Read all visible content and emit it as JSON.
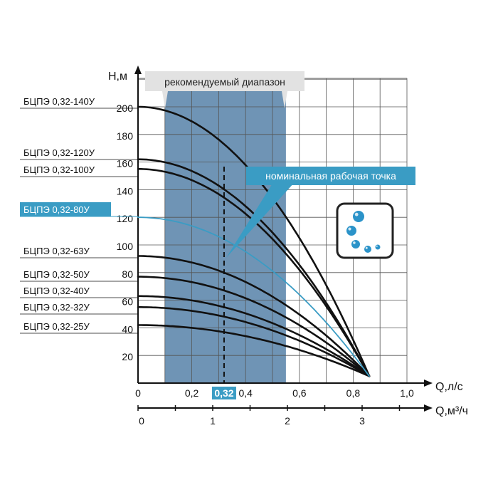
{
  "colors": {
    "grid": "#555555",
    "curve": "#111111",
    "highlight": "#3a9cc4",
    "range_fill": "#5f88ad",
    "callout_gray": "#e2e2e2",
    "water_drop": "#2b93c9"
  },
  "icon": "water-drops-icon",
  "chart_data": {
    "type": "line",
    "title": "",
    "ylabel": "Н,м",
    "xlabel": "Q,л/с",
    "xlabel2": "Q,м³/ч",
    "ylim": [
      0,
      210
    ],
    "xlim": [
      0,
      1.0
    ],
    "grid": true,
    "y_ticks": [
      "200",
      "180",
      "160",
      "140",
      "120",
      "100",
      "80",
      "60",
      "40",
      "20"
    ],
    "y_tick_values": [
      200,
      180,
      160,
      140,
      120,
      100,
      80,
      60,
      40,
      20
    ],
    "x_ticks": [
      "0",
      "0,2",
      "0,4",
      "0,6",
      "0,8",
      "1,0"
    ],
    "x_tick_values": [
      0,
      0.2,
      0.4,
      0.6,
      0.8,
      1.0
    ],
    "x2_ticks": [
      "0",
      "1",
      "2",
      "3"
    ],
    "x2_tick_values": [
      0,
      1,
      2,
      3
    ],
    "nominal_x": 0.32,
    "nominal_label": "0,32",
    "recommended_range": [
      0.1,
      0.55
    ],
    "recommended_label": "рекомендуемый диапазон",
    "nominal_point_label": "номинальная рабочая точка",
    "highlight_series": "БЦПЭ 0,32-80У",
    "series": [
      {
        "name": "БЦПЭ 0,32-140У",
        "shutoff": 200,
        "end": [
          0.86,
          5
        ]
      },
      {
        "name": "БЦПЭ 0,32-120У",
        "shutoff": 162,
        "end": [
          0.86,
          5
        ]
      },
      {
        "name": "БЦПЭ 0,32-100У",
        "shutoff": 155,
        "end": [
          0.86,
          5
        ]
      },
      {
        "name": "БЦПЭ 0,32-80У",
        "shutoff": 120,
        "end": [
          0.86,
          5
        ]
      },
      {
        "name": "БЦПЭ 0,32-63У",
        "shutoff": 92,
        "end": [
          0.86,
          5
        ]
      },
      {
        "name": "БЦПЭ 0,32-50У",
        "shutoff": 77,
        "end": [
          0.86,
          5
        ]
      },
      {
        "name": "БЦПЭ 0,32-40У",
        "shutoff": 63,
        "end": [
          0.86,
          5
        ]
      },
      {
        "name": "БЦПЭ 0,32-32У",
        "shutoff": 55,
        "end": [
          0.86,
          5
        ]
      },
      {
        "name": "БЦПЭ 0,32-25У",
        "shutoff": 42,
        "end": [
          0.86,
          5
        ]
      }
    ]
  }
}
